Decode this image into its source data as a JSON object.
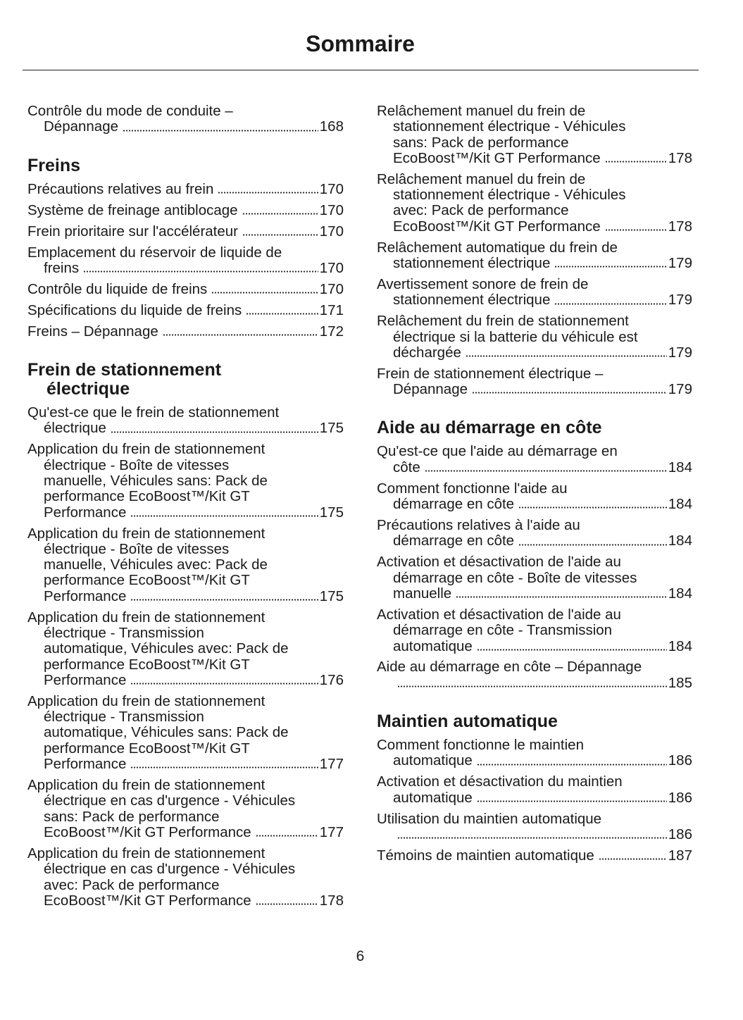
{
  "header": {
    "title": "Sommaire"
  },
  "columns": [
    [
      {
        "entries": [
          {
            "lines": [
              "Contrôle du mode de conduite –",
              "Dépannage"
            ],
            "page": "168"
          }
        ]
      },
      {
        "heading": [
          "Freins"
        ],
        "entries": [
          {
            "lines": [
              "Précautions relatives au frein"
            ],
            "page": "170"
          },
          {
            "lines": [
              "Système de freinage antiblocage"
            ],
            "page": "170"
          },
          {
            "lines": [
              "Frein prioritaire sur l'accélérateur"
            ],
            "page": "170"
          },
          {
            "lines": [
              "Emplacement du réservoir de liquide de",
              "freins"
            ],
            "page": "170"
          },
          {
            "lines": [
              "Contrôle du liquide de freins"
            ],
            "page": "170"
          },
          {
            "lines": [
              "Spécifications du liquide de freins"
            ],
            "page": "171"
          },
          {
            "lines": [
              "Freins – Dépannage"
            ],
            "page": "172"
          }
        ]
      },
      {
        "heading": [
          "Frein de stationnement",
          "électrique"
        ],
        "entries": [
          {
            "lines": [
              "Qu'est-ce que le frein de stationnement",
              "électrique"
            ],
            "page": "175"
          },
          {
            "lines": [
              "Application du frein de stationnement",
              "électrique - Boîte de vitesses",
              "manuelle, Véhicules sans: Pack de",
              "performance EcoBoost™/Kit GT",
              "Performance"
            ],
            "page": "175"
          },
          {
            "lines": [
              "Application du frein de stationnement",
              "électrique - Boîte de vitesses",
              "manuelle, Véhicules avec: Pack de",
              "performance EcoBoost™/Kit GT",
              "Performance"
            ],
            "page": "175"
          },
          {
            "lines": [
              "Application du frein de stationnement",
              "électrique - Transmission",
              "automatique, Véhicules avec: Pack de",
              "performance EcoBoost™/Kit GT",
              "Performance"
            ],
            "page": "176"
          },
          {
            "lines": [
              "Application du frein de stationnement",
              "électrique - Transmission",
              "automatique, Véhicules sans: Pack de",
              "performance EcoBoost™/Kit GT",
              "Performance"
            ],
            "page": "177"
          },
          {
            "lines": [
              "Application du frein de stationnement",
              "électrique en cas d'urgence - Véhicules",
              "sans: Pack de performance",
              "EcoBoost™/Kit GT Performance"
            ],
            "page": "177"
          },
          {
            "lines": [
              "Application du frein de stationnement",
              "électrique en cas d'urgence - Véhicules",
              "avec: Pack de performance",
              "EcoBoost™/Kit GT Performance"
            ],
            "page": "178"
          }
        ]
      }
    ],
    [
      {
        "entries": [
          {
            "lines": [
              "Relâchement manuel du frein de",
              "stationnement électrique - Véhicules",
              "sans: Pack de performance",
              "EcoBoost™/Kit GT Performance"
            ],
            "page": "178"
          },
          {
            "lines": [
              "Relâchement manuel du frein de",
              "stationnement électrique - Véhicules",
              "avec: Pack de performance",
              "EcoBoost™/Kit GT Performance"
            ],
            "page": "178"
          },
          {
            "lines": [
              "Relâchement automatique du frein de",
              "stationnement électrique"
            ],
            "page": "179"
          },
          {
            "lines": [
              "Avertissement sonore de frein de",
              "stationnement électrique"
            ],
            "page": "179"
          },
          {
            "lines": [
              "Relâchement du frein de stationnement",
              "électrique si la batterie du véhicule est",
              "déchargée"
            ],
            "page": "179"
          },
          {
            "lines": [
              "Frein de stationnement électrique –",
              "Dépannage"
            ],
            "page": "179"
          }
        ]
      },
      {
        "heading": [
          "Aide au démarrage en côte"
        ],
        "entries": [
          {
            "lines": [
              "Qu'est-ce que l'aide au démarrage en",
              "côte"
            ],
            "page": "184"
          },
          {
            "lines": [
              "Comment fonctionne l'aide au",
              "démarrage en côte"
            ],
            "page": "184"
          },
          {
            "lines": [
              "Précautions relatives à l'aide au",
              "démarrage en côte"
            ],
            "page": "184"
          },
          {
            "lines": [
              "Activation et désactivation de l'aide au",
              "démarrage en côte - Boîte de vitesses",
              "manuelle"
            ],
            "page": "184"
          },
          {
            "lines": [
              "Activation et désactivation de l'aide au",
              "démarrage en côte - Transmission",
              "automatique"
            ],
            "page": "184"
          },
          {
            "lines": [
              "Aide au démarrage en côte – Dépannage"
            ],
            "page": "185",
            "page_on_new_line": true
          }
        ]
      },
      {
        "heading": [
          "Maintien automatique"
        ],
        "entries": [
          {
            "lines": [
              "Comment fonctionne le maintien",
              "automatique"
            ],
            "page": "186"
          },
          {
            "lines": [
              "Activation et désactivation du maintien",
              "automatique"
            ],
            "page": "186"
          },
          {
            "lines": [
              "Utilisation du maintien automatique"
            ],
            "page": "186",
            "page_on_new_line": true
          },
          {
            "lines": [
              "Témoins de maintien automatique"
            ],
            "page": "187"
          }
        ]
      }
    ]
  ],
  "footer": {
    "page_number": "6"
  }
}
